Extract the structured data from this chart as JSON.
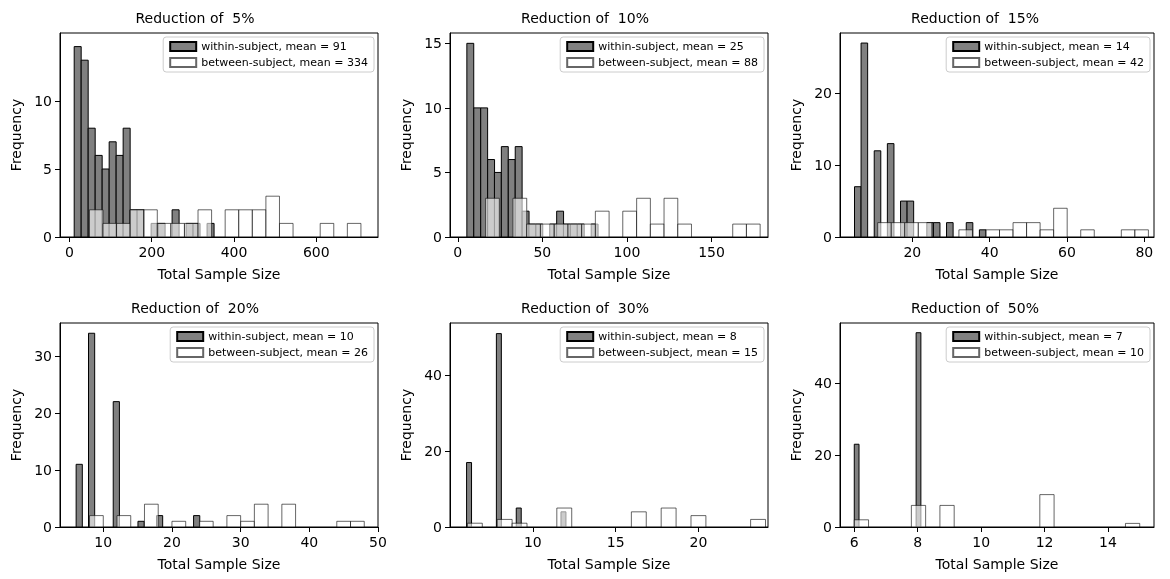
{
  "chart_data": [
    {
      "type": "bar",
      "title": "Reduction of  5%",
      "xlabel": "Total Sample Size",
      "ylabel": "Frequency",
      "xlim": [
        -23,
        750
      ],
      "xticks": [
        0,
        200,
        400,
        600
      ],
      "ylim": [
        0,
        15
      ],
      "yticks": [
        0,
        5,
        10
      ],
      "grid": false,
      "legend": "top right",
      "series": [
        {
          "name": "within-subject, mean = 91",
          "color": "#808080",
          "x": [
            20,
            37,
            54,
            71,
            88,
            105,
            122,
            139,
            156,
            173,
            190,
            207,
            224,
            241,
            258,
            275,
            292,
            309,
            326,
            343
          ],
          "values": [
            14,
            13,
            8,
            6,
            5,
            7,
            6,
            8,
            2,
            2,
            0,
            1,
            1,
            0,
            2,
            0,
            1,
            1,
            0,
            1
          ]
        },
        {
          "name": "between-subject, mean = 334",
          "color": "#ffffff",
          "x": [
            65,
            98,
            131,
            164,
            197,
            230,
            263,
            296,
            329,
            362,
            395,
            428,
            461,
            494,
            527,
            560,
            593,
            626,
            659,
            692
          ],
          "values": [
            2,
            1,
            1,
            2,
            2,
            1,
            1,
            1,
            2,
            0,
            2,
            2,
            2,
            3,
            1,
            0,
            0,
            1,
            0,
            1
          ]
        }
      ]
    },
    {
      "type": "bar",
      "title": "Reduction of  10%",
      "xlabel": "Total Sample Size",
      "ylabel": "Frequency",
      "xlim": [
        -4.6,
        183.4
      ],
      "xticks": [
        0,
        50,
        100,
        150
      ],
      "ylim": [
        0,
        15.8
      ],
      "yticks": [
        0,
        5,
        10,
        15
      ],
      "grid": false,
      "legend": "top right",
      "series": [
        {
          "name": "within-subject, mean = 25",
          "color": "#808080",
          "x": [
            7.4,
            11.5,
            15.6,
            19.7,
            23.7,
            27.8,
            31.9,
            36,
            40.1,
            44.1,
            48.2,
            52.3,
            56.4,
            60.5,
            64.5,
            68.6,
            72.7,
            76.8,
            80.9,
            84.9
          ],
          "values": [
            15,
            10,
            10,
            6,
            5,
            7,
            6,
            7,
            2,
            1,
            1,
            0,
            1,
            2,
            1,
            1,
            1,
            0,
            1,
            0
          ]
        },
        {
          "name": "between-subject, mean = 88",
          "color": "#ffffff",
          "x": [
            20.5,
            28.6,
            36.7,
            44.8,
            52.9,
            61.1,
            69.2,
            77.3,
            85.4,
            93.5,
            101.6,
            109.8,
            117.9,
            126,
            134.1,
            142.2,
            150.3,
            158.5,
            166.6,
            174.7
          ],
          "values": [
            3,
            0,
            3,
            1,
            1,
            1,
            1,
            1,
            2,
            0,
            2,
            3,
            1,
            3,
            1,
            0,
            0,
            0,
            1,
            1
          ]
        }
      ]
    },
    {
      "type": "bar",
      "title": "Reduction of  15%",
      "xlabel": "Total Sample Size",
      "ylabel": "Frequency",
      "xlim": [
        1.3,
        82.5
      ],
      "xticks": [
        20,
        40,
        60,
        80
      ],
      "ylim": [
        0,
        28.4
      ],
      "yticks": [
        0,
        10,
        20
      ],
      "grid": false,
      "legend": "top right",
      "series": [
        {
          "name": "within-subject, mean = 14",
          "color": "#808080",
          "x": [
            5.9,
            7.6,
            9.3,
            11,
            12.7,
            14.4,
            16.1,
            17.8,
            19.5,
            21.2,
            22.9,
            24.6,
            26.3,
            28,
            29.7,
            31.4,
            33.1,
            34.8,
            36.5,
            38.2
          ],
          "values": [
            7,
            27,
            0,
            12,
            0,
            13,
            0,
            5,
            5,
            0,
            0,
            2,
            2,
            0,
            2,
            0,
            0,
            2,
            0,
            1
          ]
        },
        {
          "name": "between-subject, mean = 42",
          "color": "#ffffff",
          "x": [
            12.8,
            16.3,
            19.8,
            23.3,
            26.8,
            30.3,
            33.8,
            37.3,
            40.8,
            44.3,
            47.8,
            51.3,
            54.8,
            58.3,
            61.8,
            65.3,
            68.8,
            72.3,
            75.8,
            79.3
          ],
          "values": [
            2,
            2,
            2,
            2,
            0,
            0,
            1,
            0,
            1,
            1,
            2,
            2,
            1,
            4,
            0,
            1,
            0,
            0,
            1,
            1
          ]
        }
      ]
    },
    {
      "type": "bar",
      "title": "Reduction of  20%",
      "xlabel": "Total Sample Size",
      "ylabel": "Frequency",
      "xlim": [
        3.7,
        50
      ],
      "xticks": [
        10,
        20,
        30,
        40,
        50
      ],
      "ylim": [
        0,
        35.8
      ],
      "yticks": [
        0,
        10,
        20,
        30
      ],
      "grid": false,
      "legend": "top right",
      "series": [
        {
          "name": "within-subject, mean = 10",
          "color": "#808080",
          "x": [
            6.5,
            7.4,
            8.3,
            9.2,
            10.1,
            11,
            11.9,
            12.8,
            13.7,
            14.6,
            15.5,
            16.4,
            17.3,
            18.2,
            19.1,
            20,
            20.9,
            21.8,
            22.7,
            23.6
          ],
          "values": [
            11,
            0,
            34,
            0,
            0,
            0,
            22,
            0,
            0,
            0,
            1,
            0,
            0,
            2,
            0,
            0,
            0,
            0,
            0,
            2
          ]
        },
        {
          "name": "between-subject, mean = 26",
          "color": "#ffffff",
          "x": [
            9,
            11,
            13,
            15,
            17,
            19,
            21,
            23,
            25,
            27,
            29,
            31,
            33,
            35,
            37,
            39,
            41,
            43,
            45,
            47
          ],
          "values": [
            2,
            0,
            2,
            0,
            4,
            0,
            1,
            0,
            1,
            0,
            2,
            1,
            4,
            0,
            4,
            0,
            0,
            0,
            1,
            1
          ]
        }
      ]
    },
    {
      "type": "bar",
      "title": "Reduction of  30%",
      "xlabel": "Total Sample Size",
      "ylabel": "Frequency",
      "xlim": [
        5,
        24.2
      ],
      "xticks": [
        10,
        15,
        20
      ],
      "ylim": [
        0,
        53.8
      ],
      "yticks": [
        0,
        20,
        40
      ],
      "grid": false,
      "legend": "top right",
      "series": [
        {
          "name": "within-subject, mean = 8",
          "color": "#808080",
          "x": [
            6.15,
            6.45,
            6.75,
            7.05,
            7.35,
            7.65,
            7.95,
            8.25,
            8.55,
            8.85,
            9.15,
            9.45,
            9.75,
            10.05,
            10.35,
            10.65,
            10.95,
            11.25,
            11.55,
            11.85
          ],
          "values": [
            17,
            0,
            0,
            0,
            0,
            0,
            51,
            0,
            0,
            0,
            5,
            0,
            0,
            0,
            0,
            0,
            0,
            0,
            0,
            4
          ]
        },
        {
          "name": "between-subject, mean = 15",
          "color": "#ffffff",
          "x": [
            6.5,
            7.4,
            8.3,
            9.2,
            10.1,
            11,
            11.9,
            12.8,
            13.7,
            14.6,
            15.5,
            16.4,
            17.3,
            18.2,
            19.1,
            20,
            20.9,
            21.8,
            22.7,
            23.6
          ],
          "values": [
            1,
            0,
            2,
            1,
            0,
            0,
            5,
            0,
            0,
            0,
            0,
            4,
            0,
            5,
            0,
            3,
            0,
            0,
            0,
            2
          ]
        }
      ]
    },
    {
      "type": "bar",
      "title": "Reduction of  50%",
      "xlabel": "Total Sample Size",
      "ylabel": "Frequency",
      "xlim": [
        5.55,
        15.45
      ],
      "xticks": [
        6,
        8,
        10,
        12,
        14
      ],
      "ylim": [
        0,
        56.7
      ],
      "yticks": [
        0,
        20,
        40
      ],
      "grid": false,
      "legend": "top right",
      "series": [
        {
          "name": "within-subject, mean = 7",
          "color": "#808080",
          "x": [
            6.075,
            6.225,
            6.375,
            6.525,
            6.675,
            6.825,
            6.975,
            7.125,
            7.275,
            7.425,
            7.575,
            7.725,
            7.875,
            8.025,
            8.175,
            8.325,
            8.475,
            8.625,
            8.775,
            8.925
          ],
          "values": [
            23,
            0,
            0,
            0,
            0,
            0,
            0,
            0,
            0,
            0,
            0,
            0,
            0,
            54,
            0,
            0,
            0,
            0,
            0,
            0
          ]
        },
        {
          "name": "between-subject, mean = 10",
          "color": "#ffffff",
          "x": [
            6.225,
            6.675,
            7.125,
            7.575,
            8.025,
            8.475,
            8.925,
            9.375,
            9.825,
            10.275,
            10.725,
            11.175,
            11.625,
            12.075,
            12.525,
            12.975,
            13.425,
            13.875,
            14.325,
            14.775
          ],
          "values": [
            2,
            0,
            0,
            0,
            6,
            0,
            6,
            0,
            0,
            0,
            0,
            0,
            0,
            9,
            0,
            0,
            0,
            0,
            0,
            1
          ]
        }
      ]
    }
  ]
}
